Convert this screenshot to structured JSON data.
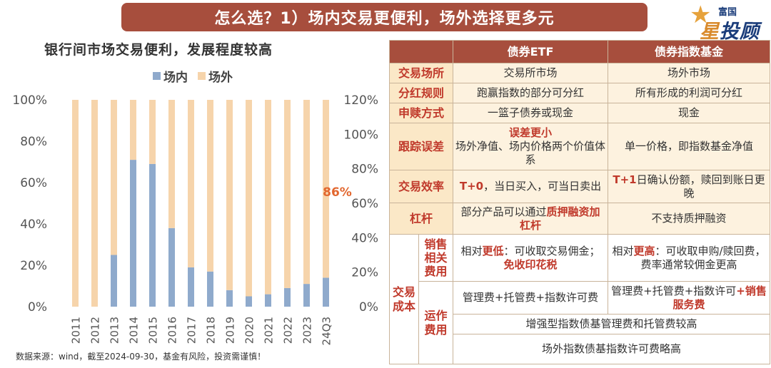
{
  "banner": {
    "title": "怎么选？1）场内交易更便利，场外选择更多元"
  },
  "logo": {
    "top": "富国",
    "main_a": "星",
    "main_b": "投顾",
    "star": "★"
  },
  "chart_title": "银行间市场交易便利，发展程度较高",
  "source": "数据来源：wind，截至2024-09-30，基金有风险，投资需谨慎！",
  "chart_data": {
    "type": "bar",
    "stacked": true,
    "title": "银行间市场交易便利，发展程度较高",
    "categories": [
      "2011",
      "2012",
      "2013",
      "2014",
      "2015",
      "2016",
      "2017",
      "2018",
      "2019",
      "2020",
      "2021",
      "2022",
      "2023",
      "24Q3"
    ],
    "series": [
      {
        "name": "场内",
        "values": [
          0,
          0,
          25,
          71,
          69,
          38,
          19,
          17,
          8,
          5,
          6,
          9,
          11,
          14
        ]
      },
      {
        "name": "场外",
        "values": [
          100,
          100,
          75,
          29,
          31,
          62,
          81,
          83,
          92,
          95,
          94,
          91,
          89,
          86
        ]
      }
    ],
    "colors": {
      "in": "#8faacc",
      "out": "#f6d4ab"
    },
    "y_left": {
      "ticks": [
        "0%",
        "20%",
        "40%",
        "60%",
        "80%",
        "100%"
      ],
      "ylim": [
        0,
        100
      ]
    },
    "y_right": {
      "ticks": [
        "0%",
        "20%",
        "40%",
        "60%",
        "80%",
        "100%",
        "120%"
      ],
      "ylim": [
        0,
        120
      ]
    },
    "annotation": {
      "text": "86%",
      "category": "24Q3",
      "value": 86,
      "color": "#e2672f"
    },
    "legend_position": "top"
  },
  "table": {
    "headers": [
      "",
      "债券ETF",
      "债券指数基金"
    ],
    "rows": {
      "venue": {
        "label": "交易场所",
        "etf": "交易所市场",
        "idx": "场外市场"
      },
      "dividend": {
        "label": "分红规则",
        "etf": "跑赢指数的部分可分红",
        "idx": "所有形成的利润可分红"
      },
      "subscribe": {
        "label": "申赎方式",
        "etf": "一篮子债券或现金",
        "idx": "现金"
      },
      "tracking": {
        "label": "跟踪误差",
        "etf_em": "误差更小",
        "etf": "场外净值、场内价格两个价值体系",
        "idx": "单一价格，即指数基金净值"
      },
      "efficiency": {
        "label": "交易效率",
        "etf_em": "T+0",
        "etf": "，当日买入，可当日卖出",
        "idx_em": "T+1",
        "idx": "日确认份额，赎回到账日更晚"
      },
      "leverage": {
        "label": "杠杆",
        "etf_a": "部分产品可以通过",
        "etf_em": "质押融资加杠杆",
        "idx": "不支持质押融资"
      }
    },
    "cost": {
      "label": "交易成本",
      "sales": {
        "label": "销售相关费用",
        "etf_a": "相对",
        "etf_em1": "更低",
        "etf_b": "：可收取交易佣金；",
        "etf_em2": "免收印花税",
        "idx_a": "相对",
        "idx_em": "更高",
        "idx_b": "：可收取申购/赎回费，费率通常较佣金更高"
      },
      "ops": {
        "label": "运作费用",
        "etf": "管理费+托管费+指数许可费",
        "idx_a": "管理费+托管费+指数许可",
        "idx_em": "+销售服务费",
        "merged1": "增强型指数债基管理费和托管费较高",
        "merged2": "场外指数债基指数许可费略高"
      }
    }
  }
}
